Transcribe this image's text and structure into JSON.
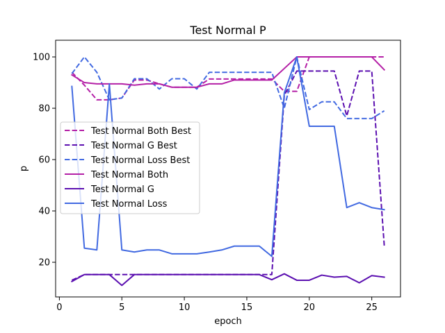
{
  "chart_data": {
    "type": "line",
    "title": "Test Normal P",
    "xlabel": "epoch",
    "ylabel": "p",
    "xlim": [
      -0.3,
      27.3
    ],
    "ylim": [
      6.5,
      106.5
    ],
    "xticks": [
      0,
      5,
      10,
      15,
      20,
      25
    ],
    "yticks": [
      20,
      40,
      60,
      80,
      100
    ],
    "grid": false,
    "legend_position": "center-left",
    "x": [
      1,
      2,
      3,
      4,
      5,
      6,
      7,
      8,
      9,
      10,
      11,
      12,
      13,
      14,
      15,
      16,
      17,
      18,
      19,
      20,
      21,
      22,
      23,
      24,
      25,
      26
    ],
    "series": [
      {
        "name": "Test Normal Both Best",
        "color": "#b41fa6",
        "dashed": true,
        "values": [
          94,
          89,
          83.3,
          83.3,
          84,
          91,
          91,
          89.5,
          88.2,
          88.2,
          88.2,
          91.4,
          91.4,
          91.4,
          91.4,
          91.4,
          91.4,
          86.6,
          86.6,
          100,
          100,
          100,
          100,
          100,
          100,
          100
        ]
      },
      {
        "name": "Test Normal G Best",
        "color": "#5b0fb0",
        "dashed": true,
        "values": [
          13,
          15.2,
          15.2,
          15.2,
          15.2,
          15.2,
          15.2,
          15.2,
          15.2,
          15.2,
          15.2,
          15.2,
          15.2,
          15.2,
          15.2,
          15.2,
          15.2,
          85,
          94.5,
          94.5,
          94.5,
          94.5,
          77,
          94.5,
          94.5,
          26.5
        ]
      },
      {
        "name": "Test Normal Loss Best",
        "color": "#4169e1",
        "dashed": true,
        "values": [
          93.5,
          100,
          94,
          83.3,
          84,
          91.5,
          91.5,
          87.5,
          91.5,
          91.5,
          87.5,
          94,
          94,
          94,
          94,
          94,
          94,
          80,
          100,
          79.5,
          82.5,
          82.5,
          76,
          76,
          76,
          79
        ]
      },
      {
        "name": "Test Normal Both",
        "color": "#b41fa6",
        "dashed": false,
        "values": [
          93,
          90,
          89.5,
          89.5,
          89.5,
          89,
          89.5,
          89.5,
          88.2,
          88.2,
          88.2,
          89.5,
          89.5,
          91,
          91,
          91,
          91,
          95.5,
          100,
          100,
          100,
          100,
          100,
          100,
          100,
          95
        ]
      },
      {
        "name": "Test Normal G",
        "color": "#5b0fb0",
        "dashed": false,
        "values": [
          12.5,
          15.2,
          15.2,
          15.2,
          11,
          15.2,
          15.2,
          15.2,
          15.2,
          15.2,
          15.2,
          15.2,
          15.2,
          15.2,
          15.2,
          15.2,
          13.2,
          15.5,
          13,
          13,
          15,
          14.2,
          14.5,
          12,
          14.8,
          14.2
        ]
      },
      {
        "name": "Test Normal Loss",
        "color": "#4169e1",
        "dashed": false,
        "values": [
          88.5,
          25.5,
          24.8,
          89.5,
          24.8,
          24,
          24.8,
          24.8,
          23.3,
          23.3,
          23.3,
          24,
          24.8,
          26.3,
          26.3,
          26.3,
          22.3,
          86,
          100,
          73,
          73,
          73,
          41.3,
          43.2,
          41.3,
          40.5
        ]
      }
    ]
  }
}
